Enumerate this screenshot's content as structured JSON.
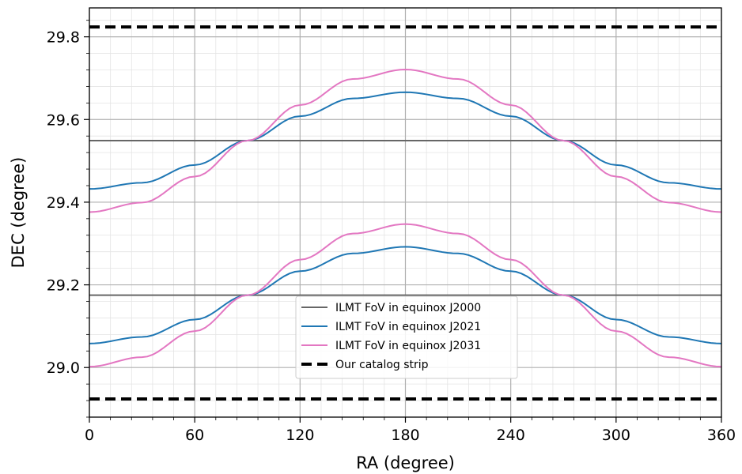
{
  "chart_data": {
    "type": "line",
    "xlabel": "RA (degree)",
    "ylabel": "DEC (degree)",
    "xlim": [
      0,
      360
    ],
    "ylim": [
      28.88,
      29.87
    ],
    "xticks": [
      0,
      60,
      120,
      180,
      240,
      300,
      360
    ],
    "xtick_labels": [
      "0",
      "60",
      "120",
      "180",
      "240",
      "300",
      "360"
    ],
    "yticks": [
      29.0,
      29.2,
      29.4,
      29.6,
      29.8
    ],
    "ytick_labels": [
      "29.0",
      "29.2",
      "29.4",
      "29.6",
      "29.8"
    ],
    "grid": "major and minor",
    "legend_position": "lower-center",
    "legend": [
      "ILMT FoV in equinox J2000",
      "ILMT FoV in equinox J2021",
      "ILMT FoV in equinox J2031",
      "Our catalog strip"
    ],
    "series": [
      {
        "name": "ILMT FoV in equinox J2000",
        "color": "#666666",
        "style": "solid",
        "curves": [
          {
            "x": [
              0,
              360
            ],
            "y": [
              29.549,
              29.549
            ]
          },
          {
            "x": [
              0,
              360
            ],
            "y": [
              29.175,
              29.175
            ]
          }
        ]
      },
      {
        "name": "ILMT FoV in equinox J2021",
        "color": "#1f77b4",
        "style": "solid",
        "curves": [
          {
            "x": [
              0,
              30,
              60,
              90,
              120,
              150,
              180,
              210,
              240,
              270,
              300,
              330,
              360
            ],
            "y": [
              29.432,
              29.447,
              29.49,
              29.549,
              29.608,
              29.651,
              29.666,
              29.651,
              29.608,
              29.549,
              29.49,
              29.447,
              29.432
            ]
          },
          {
            "x": [
              0,
              30,
              60,
              90,
              120,
              150,
              180,
              210,
              240,
              270,
              300,
              330,
              360
            ],
            "y": [
              29.058,
              29.074,
              29.116,
              29.175,
              29.233,
              29.276,
              29.292,
              29.276,
              29.233,
              29.175,
              29.116,
              29.074,
              29.058
            ]
          }
        ]
      },
      {
        "name": "ILMT FoV in equinox J2031",
        "color": "#e377c2",
        "style": "solid",
        "curves": [
          {
            "x": [
              0,
              30,
              60,
              90,
              120,
              150,
              180,
              210,
              240,
              270,
              300,
              330,
              360
            ],
            "y": [
              29.376,
              29.399,
              29.462,
              29.549,
              29.635,
              29.698,
              29.721,
              29.698,
              29.635,
              29.549,
              29.462,
              29.399,
              29.376
            ]
          },
          {
            "x": [
              0,
              30,
              60,
              90,
              120,
              150,
              180,
              210,
              240,
              270,
              300,
              330,
              360
            ],
            "y": [
              29.002,
              29.025,
              29.088,
              29.175,
              29.261,
              29.324,
              29.347,
              29.324,
              29.261,
              29.175,
              29.088,
              29.025,
              29.002
            ]
          }
        ]
      },
      {
        "name": "Our catalog strip",
        "color": "#000000",
        "style": "dashed",
        "curves": [
          {
            "x": [
              0,
              360
            ],
            "y": [
              29.824,
              29.824
            ]
          },
          {
            "x": [
              0,
              360
            ],
            "y": [
              28.924,
              28.924
            ]
          }
        ]
      }
    ]
  }
}
